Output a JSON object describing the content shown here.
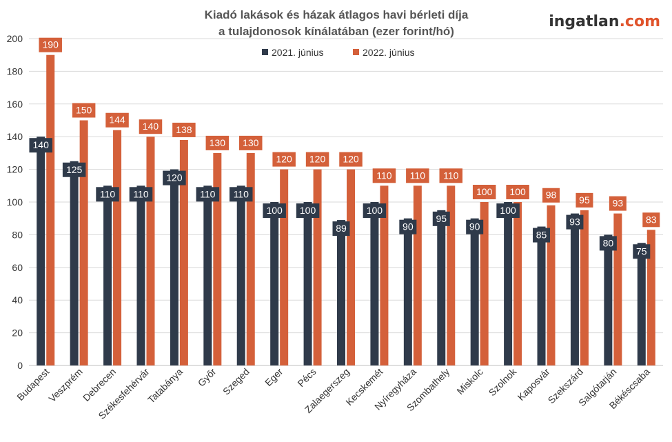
{
  "header": {
    "title_line1": "Kiadó lakások és házak átlagos havi bérleti díja",
    "title_line2": "a tulajdonosok kínálatában (ezer forint/hó)",
    "logo_main": "ingatlan",
    "logo_suffix": ".com"
  },
  "colors": {
    "series_2021": "#2f3a4a",
    "series_2022": "#d4603a",
    "grid": "#d9d9d9",
    "logo_main": "#333333",
    "logo_suffix": "#e0532b"
  },
  "chart_data": {
    "type": "bar",
    "title": "Kiadó lakások és házak átlagos havi bérleti díja a tulajdonosok kínálatában (ezer forint/hó)",
    "categories": [
      "Budapest",
      "Veszprém",
      "Debrecen",
      "Székesfehérvár",
      "Tatabánya",
      "Győr",
      "Szeged",
      "Eger",
      "Pécs",
      "Zalaegerszeg",
      "Kecskemét",
      "Nyíregyháza",
      "Szombathely",
      "Miskolc",
      "Szolnok",
      "Kaposvár",
      "Szekszárd",
      "Salgótarján",
      "Békéscsaba"
    ],
    "series": [
      {
        "name": "2021. június",
        "values": [
          140,
          125,
          110,
          110,
          120,
          110,
          110,
          100,
          100,
          89,
          100,
          90,
          95,
          90,
          100,
          85,
          93,
          80,
          75
        ]
      },
      {
        "name": "2022. június",
        "values": [
          190,
          150,
          144,
          140,
          138,
          130,
          130,
          120,
          120,
          120,
          110,
          110,
          110,
          100,
          100,
          98,
          95,
          93,
          83
        ]
      }
    ],
    "yticks": [
      "0",
      "20",
      "40",
      "60",
      "80",
      "100",
      "120",
      "140",
      "160",
      "180",
      "200"
    ],
    "ylim": [
      0,
      200
    ],
    "grid": true,
    "legend": "top-center"
  }
}
